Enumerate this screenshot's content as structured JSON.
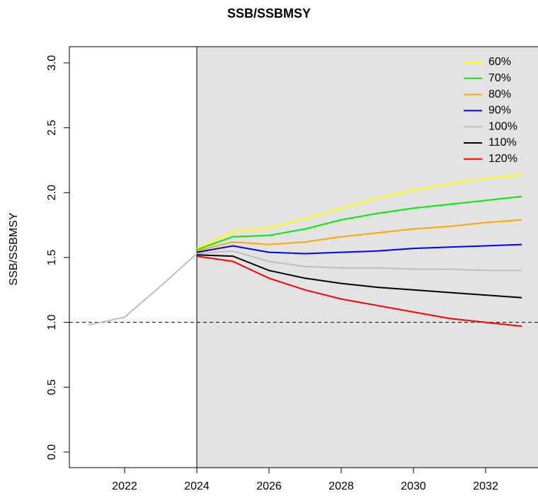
{
  "chart_data": {
    "type": "line",
    "title": "SSB/SSBMSY",
    "y_label": "SSB/SSBMSY",
    "x": [
      2024,
      2025,
      2026,
      2027,
      2028,
      2029,
      2030,
      2031,
      2032,
      2033
    ],
    "series": [
      {
        "name": "60%",
        "color": "#ffff00",
        "values": [
          1.57,
          1.7,
          1.73,
          1.8,
          1.88,
          1.96,
          2.02,
          2.07,
          2.11,
          2.14
        ]
      },
      {
        "name": "70%",
        "color": "#00ee00",
        "values": [
          1.56,
          1.66,
          1.67,
          1.72,
          1.79,
          1.84,
          1.88,
          1.91,
          1.94,
          1.97
        ]
      },
      {
        "name": "80%",
        "color": "#ffa500",
        "values": [
          1.55,
          1.62,
          1.6,
          1.62,
          1.66,
          1.69,
          1.72,
          1.74,
          1.77,
          1.79
        ]
      },
      {
        "name": "90%",
        "color": "#0000ff",
        "values": [
          1.54,
          1.59,
          1.54,
          1.53,
          1.54,
          1.55,
          1.57,
          1.58,
          1.59,
          1.6
        ]
      },
      {
        "name": "100%",
        "color": "#bebebe",
        "values": [
          1.53,
          1.55,
          1.47,
          1.43,
          1.42,
          1.42,
          1.41,
          1.41,
          1.4,
          1.4
        ]
      },
      {
        "name": "110%",
        "color": "#000000",
        "values": [
          1.52,
          1.51,
          1.4,
          1.34,
          1.3,
          1.27,
          1.25,
          1.23,
          1.21,
          1.19
        ]
      },
      {
        "name": "120%",
        "color": "#ff0000",
        "values": [
          1.51,
          1.47,
          1.34,
          1.25,
          1.18,
          1.13,
          1.08,
          1.03,
          1.0,
          0.97
        ]
      }
    ],
    "history": {
      "x": [
        2021,
        2022,
        2023,
        2024
      ],
      "values": [
        0.98,
        1.04,
        1.28,
        1.53
      ],
      "color": "#bebebe"
    },
    "reference_line": 1.0,
    "projection_start": 2024,
    "shade_color": "#e3e3e3",
    "xlim": [
      2020.47,
      2033.45
    ],
    "ylim": [
      -0.12,
      3.125
    ],
    "xticks": [
      2022,
      2024,
      2026,
      2028,
      2030,
      2032
    ],
    "yticks": [
      {
        "value": 0,
        "label": "0.0"
      },
      0.5,
      {
        "value": 1,
        "label": "1.0"
      },
      1.5,
      {
        "value": 2,
        "label": "2.0"
      },
      2.5,
      {
        "value": 3,
        "label": "3.0"
      }
    ],
    "legend": "top-right"
  }
}
